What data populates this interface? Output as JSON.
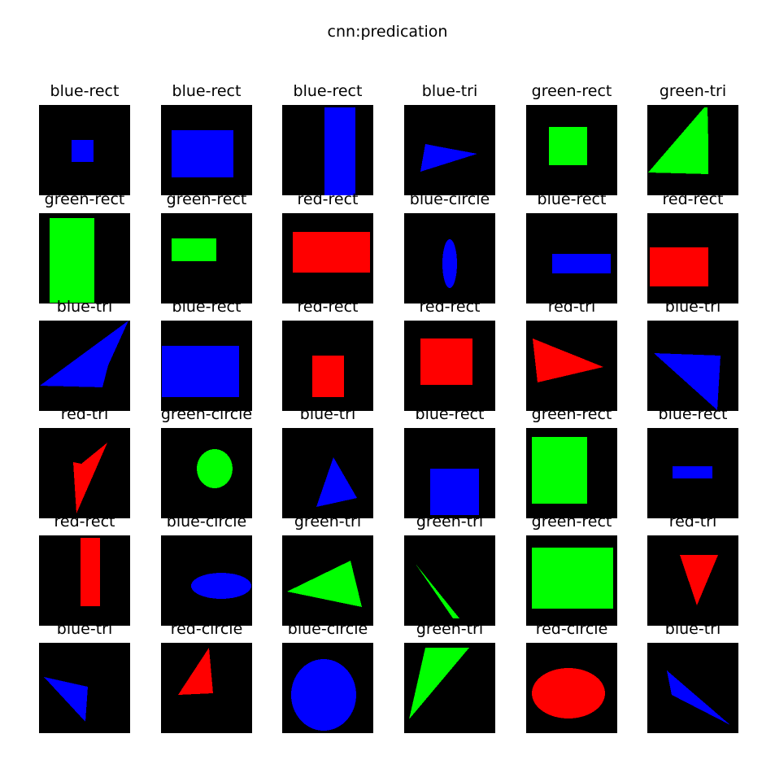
{
  "title": "cnn:predication",
  "colors": {
    "background": "#000000",
    "blue": "#0000ff",
    "green": "#00ff00",
    "red": "#ff0000"
  },
  "panels": [
    {
      "label": "blue-rect"
    },
    {
      "label": "blue-rect"
    },
    {
      "label": "blue-rect"
    },
    {
      "label": "blue-tri"
    },
    {
      "label": "green-rect"
    },
    {
      "label": "green-tri"
    },
    {
      "label": "green-rect"
    },
    {
      "label": "green-rect"
    },
    {
      "label": "red-rect"
    },
    {
      "label": "blue-circle"
    },
    {
      "label": "blue-rect"
    },
    {
      "label": "red-rect"
    },
    {
      "label": "blue-tri"
    },
    {
      "label": "blue-rect"
    },
    {
      "label": "red-rect"
    },
    {
      "label": "red-rect"
    },
    {
      "label": "red-tri"
    },
    {
      "label": "blue-tri"
    },
    {
      "label": "red-tri"
    },
    {
      "label": "green-circle"
    },
    {
      "label": "blue-tri"
    },
    {
      "label": "blue-rect"
    },
    {
      "label": "green-rect"
    },
    {
      "label": "blue-rect"
    },
    {
      "label": "red-rect"
    },
    {
      "label": "blue-circle"
    },
    {
      "label": "green-tri"
    },
    {
      "label": "green-tri"
    },
    {
      "label": "green-rect"
    },
    {
      "label": "red-tri"
    },
    {
      "label": "blue-tri"
    },
    {
      "label": "red-circle"
    },
    {
      "label": "blue-circle"
    },
    {
      "label": "green-tri"
    },
    {
      "label": "red-circle"
    },
    {
      "label": "blue-tri"
    }
  ]
}
